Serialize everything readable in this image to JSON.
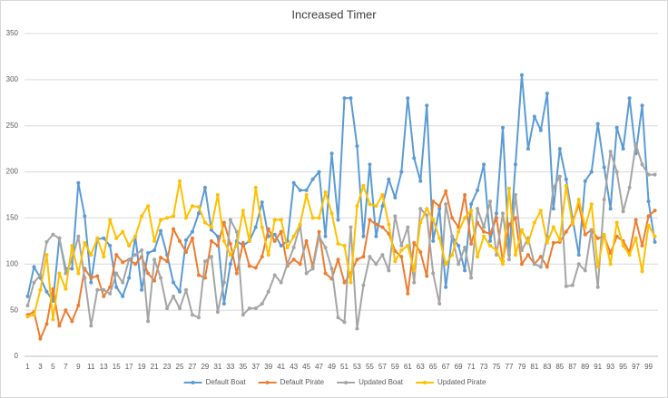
{
  "chart_data": {
    "type": "line",
    "title": "Increased Timer",
    "categories": [
      1,
      null,
      3,
      null,
      5,
      null,
      7,
      null,
      9,
      null,
      11,
      null,
      13,
      null,
      15,
      null,
      17,
      null,
      19,
      null,
      21,
      null,
      23,
      null,
      25,
      null,
      27,
      null,
      29,
      null,
      31,
      null,
      33,
      null,
      35,
      null,
      37,
      null,
      39,
      null,
      41,
      null,
      43,
      null,
      45,
      null,
      47,
      null,
      49,
      null,
      51,
      null,
      53,
      null,
      55,
      null,
      57,
      null,
      59,
      null,
      61,
      null,
      63,
      null,
      65,
      null,
      67,
      null,
      69,
      null,
      71,
      null,
      73,
      null,
      75,
      null,
      77,
      null,
      79,
      null,
      81,
      null,
      83,
      null,
      85,
      null,
      87,
      null,
      89,
      null,
      91,
      null,
      93,
      null,
      95,
      null,
      97,
      null,
      99,
      null
    ],
    "ylim": [
      0,
      350
    ],
    "yticks": [
      0,
      50,
      100,
      150,
      200,
      250,
      300,
      350
    ],
    "grid": true,
    "legend": "bottom",
    "series": [
      {
        "name": "Default Boat",
        "color": "#5b9bd5",
        "values": [
          65,
          97,
          85,
          70,
          60,
          128,
          95,
          95,
          188,
          152,
          80,
          127,
          128,
          120,
          75,
          65,
          85,
          130,
          72,
          112,
          115,
          136,
          110,
          80,
          70,
          126,
          135,
          155,
          183,
          137,
          130,
          57,
          100,
          125,
          120,
          125,
          140,
          167,
          130,
          132,
          120,
          125,
          188,
          180,
          180,
          192,
          200,
          130,
          220,
          148,
          280,
          280,
          228,
          130,
          208,
          130,
          163,
          192,
          172,
          200,
          280,
          215,
          190,
          272,
          125,
          160,
          75,
          130,
          120,
          93,
          165,
          180,
          208,
          125,
          155,
          248,
          110,
          208,
          305,
          225,
          260,
          245,
          285,
          160,
          225,
          192,
          150,
          110,
          190,
          200,
          252,
          205,
          160,
          248,
          225,
          280,
          220,
          272,
          168,
          124
        ]
      },
      {
        "name": "Default Pirate",
        "color": "#ed7d31",
        "values": [
          45,
          48,
          19,
          35,
          73,
          33,
          50,
          38,
          55,
          95,
          85,
          87,
          65,
          75,
          110,
          102,
          105,
          100,
          108,
          90,
          82,
          107,
          103,
          138,
          125,
          113,
          128,
          88,
          85,
          125,
          120,
          145,
          122,
          90,
          123,
          98,
          96,
          108,
          138,
          125,
          135,
          98,
          105,
          100,
          125,
          97,
          135,
          90,
          84,
          105,
          80,
          90,
          105,
          108,
          148,
          143,
          140,
          133,
          114,
          108,
          68,
          123,
          113,
          87,
          168,
          163,
          179,
          150,
          140,
          175,
          122,
          145,
          135,
          133,
          150,
          103,
          143,
          150,
          100,
          110,
          100,
          108,
          97,
          123,
          124,
          135,
          145,
          165,
          132,
          137,
          128,
          130,
          112,
          130,
          125,
          113,
          148,
          120,
          152,
          158
        ]
      },
      {
        "name": "Updated Boat",
        "color": "#a5a5a5",
        "values": [
          55,
          80,
          88,
          124,
          132,
          128,
          90,
          105,
          130,
          85,
          33,
          72,
          72,
          68,
          90,
          80,
          105,
          110,
          115,
          38,
          105,
          85,
          52,
          65,
          52,
          72,
          45,
          42,
          103,
          108,
          48,
          80,
          148,
          135,
          45,
          52,
          52,
          57,
          70,
          88,
          80,
          100,
          118,
          142,
          90,
          95,
          130,
          118,
          95,
          42,
          37,
          140,
          30,
          77,
          108,
          100,
          110,
          93,
          152,
          120,
          140,
          80,
          160,
          153,
          90,
          57,
          165,
          130,
          100,
          118,
          85,
          160,
          140,
          168,
          110,
          155,
          105,
          175,
          115,
          128,
          100,
          97,
          130,
          183,
          195,
          76,
          77,
          100,
          93,
          137,
          75,
          170,
          222,
          200,
          157,
          183,
          230,
          208,
          197,
          197
        ]
      },
      {
        "name": "Updated Pirate",
        "color": "#ffc000",
        "values": [
          43,
          45,
          72,
          110,
          40,
          90,
          73,
          120,
          90,
          123,
          110,
          128,
          108,
          148,
          128,
          135,
          120,
          130,
          152,
          163,
          125,
          148,
          150,
          152,
          190,
          150,
          163,
          162,
          145,
          140,
          175,
          125,
          110,
          120,
          158,
          125,
          183,
          140,
          110,
          148,
          148,
          118,
          130,
          143,
          175,
          150,
          150,
          178,
          155,
          122,
          120,
          80,
          163,
          185,
          165,
          163,
          175,
          143,
          103,
          115,
          120,
          93,
          145,
          160,
          148,
          128,
          100,
          110,
          135,
          150,
          158,
          108,
          130,
          120,
          115,
          100,
          182,
          110,
          137,
          123,
          145,
          158,
          123,
          140,
          126,
          185,
          143,
          170,
          140,
          165,
          97,
          132,
          100,
          145,
          120,
          110,
          128,
          92,
          142,
          130
        ]
      }
    ]
  }
}
